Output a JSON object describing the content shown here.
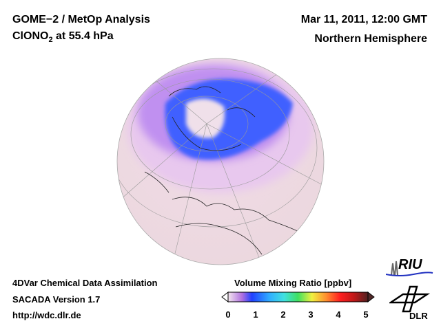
{
  "header": {
    "title_line1": "GOME−2 / MetOp Analysis",
    "species": "ClONO",
    "species_sub": "2",
    "species_suffix": " at 55.4 hPa",
    "date": "Mar 11, 2011, 12:00 GMT",
    "region": "Northern Hemisphere"
  },
  "footer": {
    "line1": "4DVar Chemical Data Assimilation",
    "line2": "SACADA Version 1.7",
    "line3": "http://wdc.dlr.de"
  },
  "colorbar": {
    "title": "Volume Mixing Ratio [ppbv]",
    "min": 0,
    "max": 5,
    "ticks": [
      "0",
      "1",
      "2",
      "3",
      "4",
      "5"
    ],
    "colors": [
      "#f3e6ee",
      "#b070e0",
      "#2040ff",
      "#30b0ff",
      "#40e0e0",
      "#40e060",
      "#f0f040",
      "#ff9030",
      "#ff2020",
      "#c01818",
      "#502020"
    ]
  },
  "logos": {
    "riu": "RIU",
    "dlr": "DLR"
  }
}
